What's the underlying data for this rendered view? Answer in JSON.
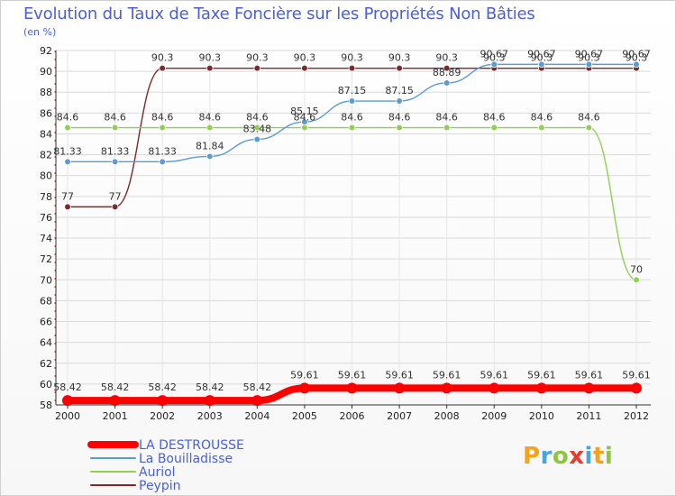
{
  "chart_data": {
    "type": "line",
    "title": "Evolution du Taux de Taxe Foncière sur les Propriétés Non Bâties",
    "ylabel": "(en %)",
    "xlabel": "",
    "ylim": [
      58,
      92
    ],
    "yticks": [
      58,
      60,
      62,
      64,
      66,
      68,
      70,
      72,
      74,
      76,
      78,
      80,
      82,
      84,
      86,
      88,
      90,
      92
    ],
    "categories": [
      "2000",
      "2001",
      "2002",
      "2003",
      "2004",
      "2005",
      "2006",
      "2007",
      "2008",
      "2009",
      "2010",
      "2011",
      "2012"
    ],
    "series": [
      {
        "name": "LA DESTROUSSE",
        "color": "#ff0000",
        "values": [
          58.42,
          58.42,
          58.42,
          58.42,
          58.42,
          59.61,
          59.61,
          59.61,
          59.61,
          59.61,
          59.61,
          59.61,
          59.61
        ],
        "labels": [
          "58.42",
          "58.42",
          "58.42",
          "58.42",
          "58.42",
          "59.61",
          "59.61",
          "59.61",
          "59.61",
          "59.61",
          "59.61",
          "59.61",
          "59.61"
        ]
      },
      {
        "name": "La Bouilladisse",
        "color": "#5b9bd5",
        "values": [
          81.33,
          81.33,
          81.33,
          81.84,
          83.48,
          85.15,
          87.15,
          87.15,
          88.89,
          90.67,
          90.67,
          90.67,
          90.67
        ],
        "labels": [
          "81.33",
          "81.33",
          "81.33",
          "81.84",
          "83.48",
          "85.15",
          "87.15",
          "87.15",
          "88.89",
          "90.67",
          "90.67",
          "90.67",
          "90.67"
        ]
      },
      {
        "name": "Auriol",
        "color": "#8fd14f",
        "values": [
          84.6,
          84.6,
          84.6,
          84.6,
          84.6,
          84.6,
          84.6,
          84.6,
          84.6,
          84.6,
          84.6,
          84.6,
          70
        ],
        "labels": [
          "84.6",
          "84.6",
          "84.6",
          "84.6",
          "84.6",
          "84.6",
          "84.6",
          "84.6",
          "84.6",
          "84.6",
          "84.6",
          "84.6",
          "70"
        ]
      },
      {
        "name": "Peypin",
        "color": "#7a2a2a",
        "values": [
          77,
          77,
          90.3,
          90.3,
          90.3,
          90.3,
          90.3,
          90.3,
          90.3,
          90.3,
          90.3,
          90.3,
          90.3
        ],
        "labels": [
          "77",
          "77",
          "90.3",
          "90.3",
          "90.3",
          "90.3",
          "90.3",
          "90.3",
          "90.3",
          "90.3",
          "90.3",
          "90.3",
          "90.3"
        ]
      }
    ]
  },
  "brand": {
    "logo_letters": [
      "P",
      "r",
      "o",
      "x",
      "i",
      "t",
      "i"
    ],
    "logo_colors": [
      "#f7a21b",
      "#4aa3df",
      "#8cc63f",
      "#e63b2e",
      "#4aa3df",
      "#f7a21b",
      "#8cc63f"
    ]
  },
  "colors": {
    "title": "#4a5fd8",
    "grid": "#d9d9d9",
    "axis": "#333333"
  }
}
